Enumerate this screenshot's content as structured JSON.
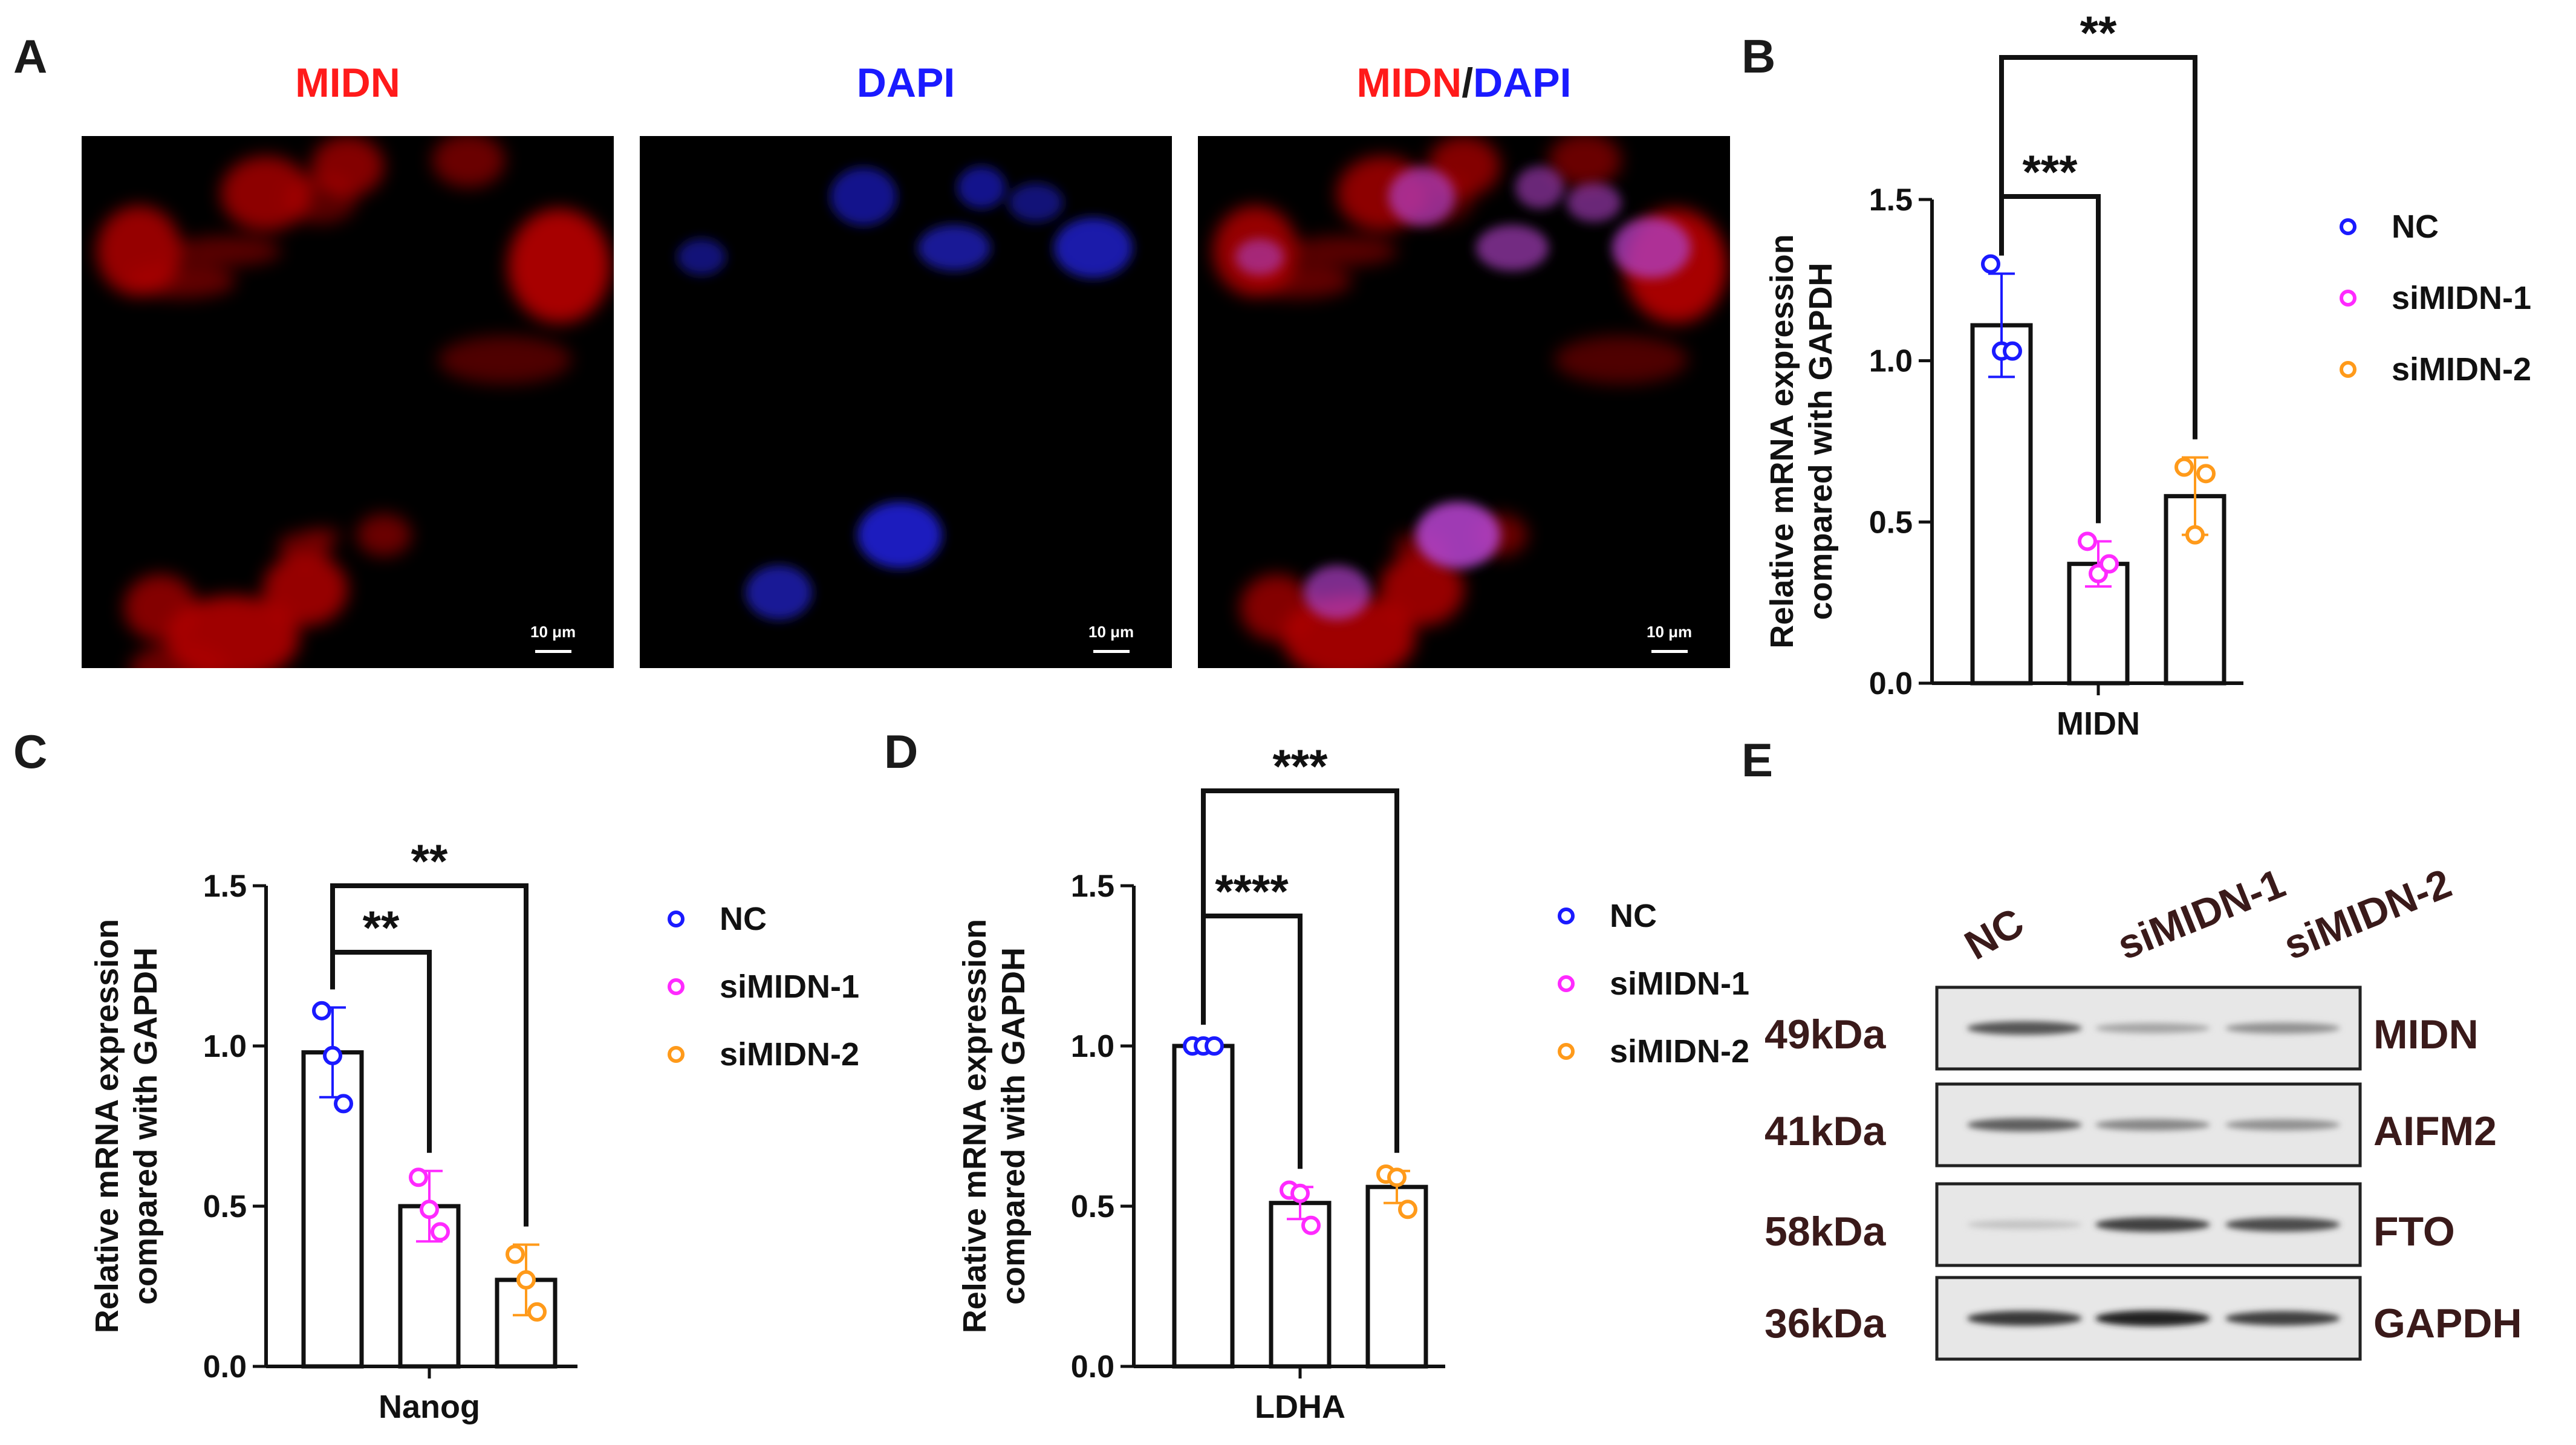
{
  "panels": {
    "A": "A",
    "B": "B",
    "C": "C",
    "D": "D",
    "E": "E"
  },
  "microscopy": {
    "titles": [
      {
        "parts": [
          {
            "text": "MIDN",
            "color": "#ff1a1a"
          }
        ]
      },
      {
        "parts": [
          {
            "text": "DAPI",
            "color": "#1a1aff"
          }
        ]
      },
      {
        "parts": [
          {
            "text": "MIDN",
            "color": "#ff1a1a"
          },
          {
            "text": "/",
            "color": "#1a1a1a"
          },
          {
            "text": "DAPI",
            "color": "#1a1aff"
          }
        ]
      }
    ],
    "scale_bar_label": "10 μm"
  },
  "colors": {
    "NC": "#1a1aff",
    "siMIDN-1": "#ff2aff",
    "siMIDN-2": "#ff9a1a"
  },
  "chart_data": [
    {
      "id": "B",
      "type": "bar",
      "ylabel": "Relative mRNA expression compared with GAPDH",
      "ylabel_lines": [
        "Relative mRNA expression",
        "compared with GAPDH"
      ],
      "xlabel": "MIDN",
      "ylim": [
        0,
        1.5
      ],
      "yticks": [
        "0.0",
        "0.5",
        "1.0",
        "1.5"
      ],
      "legend": [
        "NC",
        "siMIDN-1",
        "siMIDN-2"
      ],
      "legend_position": "right",
      "categories": [
        "NC",
        "siMIDN-1",
        "siMIDN-2"
      ],
      "values": [
        1.11,
        0.37,
        0.58
      ],
      "errors": [
        0.16,
        0.07,
        0.12
      ],
      "points": [
        [
          1.3,
          1.03,
          1.03
        ],
        [
          0.44,
          0.34,
          0.37
        ],
        [
          0.67,
          0.46,
          0.65
        ]
      ],
      "significance": [
        {
          "from": 0,
          "to": 1,
          "label": "***"
        },
        {
          "from": 0,
          "to": 2,
          "label": "**"
        }
      ]
    },
    {
      "id": "C",
      "type": "bar",
      "ylabel": "Relative mRNA expression compared with GAPDH",
      "ylabel_lines": [
        "Relative mRNA expression",
        "compared with GAPDH"
      ],
      "xlabel": "Nanog",
      "ylim": [
        0,
        1.5
      ],
      "yticks": [
        "0.0",
        "0.5",
        "1.0",
        "1.5"
      ],
      "legend": [
        "NC",
        "siMIDN-1",
        "siMIDN-2"
      ],
      "legend_position": "right",
      "categories": [
        "NC",
        "siMIDN-1",
        "siMIDN-2"
      ],
      "values": [
        0.98,
        0.5,
        0.27
      ],
      "errors": [
        0.14,
        0.11,
        0.11
      ],
      "points": [
        [
          1.11,
          0.97,
          0.82
        ],
        [
          0.59,
          0.49,
          0.42
        ],
        [
          0.35,
          0.27,
          0.17
        ]
      ],
      "significance": [
        {
          "from": 0,
          "to": 1,
          "label": "**"
        },
        {
          "from": 0,
          "to": 2,
          "label": "**"
        }
      ]
    },
    {
      "id": "D",
      "type": "bar",
      "ylabel": "Relative mRNA expression compared with GAPDH",
      "ylabel_lines": [
        "Relative mRNA expression",
        "compared with GAPDH"
      ],
      "xlabel": "LDHA",
      "ylim": [
        0,
        1.5
      ],
      "yticks": [
        "0.0",
        "0.5",
        "1.0",
        "1.5"
      ],
      "legend": [
        "NC",
        "siMIDN-1",
        "siMIDN-2"
      ],
      "legend_position": "right",
      "categories": [
        "NC",
        "siMIDN-1",
        "siMIDN-2"
      ],
      "values": [
        1.0,
        0.51,
        0.56
      ],
      "errors": [
        0.01,
        0.05,
        0.05
      ],
      "points": [
        [
          1.0,
          1.0,
          1.0
        ],
        [
          0.55,
          0.54,
          0.44
        ],
        [
          0.6,
          0.59,
          0.49
        ]
      ],
      "significance": [
        {
          "from": 0,
          "to": 1,
          "label": "****"
        },
        {
          "from": 0,
          "to": 2,
          "label": "***"
        }
      ]
    }
  ],
  "western_blot": {
    "lanes": [
      "NC",
      "siMIDN-1",
      "siMIDN-2"
    ],
    "rows": [
      {
        "kda": "49kDa",
        "protein": "MIDN",
        "intensities": [
          0.75,
          0.35,
          0.45
        ]
      },
      {
        "kda": "41kDa",
        "protein": "AIFM2",
        "intensities": [
          0.7,
          0.5,
          0.45
        ]
      },
      {
        "kda": "58kDa",
        "protein": "FTO",
        "intensities": [
          0.2,
          0.85,
          0.8
        ]
      },
      {
        "kda": "36kDa",
        "protein": "GAPDH",
        "intensities": [
          0.9,
          1.0,
          0.85
        ]
      }
    ]
  }
}
